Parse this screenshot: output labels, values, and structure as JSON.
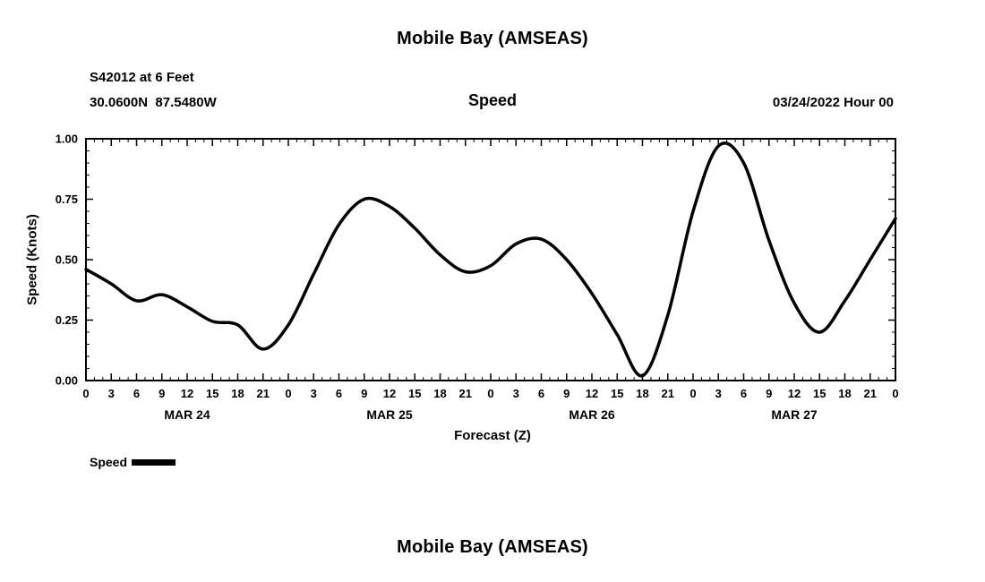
{
  "page": {
    "title_top": "Mobile Bay (AMSEAS)",
    "title_bottom": "Mobile Bay (AMSEAS)"
  },
  "header": {
    "station": "S42012 at 6 Feet",
    "coordinates": "30.0600N  87.5480W",
    "subtitle": "Speed",
    "datetime": "03/24/2022 Hour 00"
  },
  "chart_data": {
    "type": "line",
    "title": "Speed",
    "xlabel": "Forecast (Z)",
    "ylabel": "Speed (Knots)",
    "ylim": [
      0,
      1
    ],
    "xlim_hours": [
      0,
      96
    ],
    "grid": false,
    "line_color": "#000000",
    "line_width": 3.5,
    "legend": [
      {
        "name": "Speed",
        "color": "#000000"
      }
    ],
    "legend_position": "below-left",
    "ytick_values": [
      0,
      0.25,
      0.5,
      0.75,
      1
    ],
    "ytick_labels": [
      "0.00",
      "0.25",
      "0.50",
      "0.75",
      "1.00"
    ],
    "xtick_hours": [
      0,
      3,
      6,
      9,
      12,
      15,
      18,
      21,
      24,
      27,
      30,
      33,
      36,
      39,
      42,
      45,
      48,
      51,
      54,
      57,
      60,
      63,
      66,
      69,
      72,
      75,
      78,
      81,
      84,
      87,
      90,
      93,
      96
    ],
    "xtick_labels": [
      "0",
      "3",
      "6",
      "9",
      "12",
      "15",
      "18",
      "21",
      "0",
      "3",
      "6",
      "9",
      "12",
      "15",
      "18",
      "21",
      "0",
      "3",
      "6",
      "9",
      "12",
      "15",
      "18",
      "21",
      "0",
      "3",
      "6",
      "9",
      "12",
      "15",
      "18",
      "21",
      "0"
    ],
    "day_labels": [
      {
        "label": "MAR 24",
        "hour": 12
      },
      {
        "label": "MAR 25",
        "hour": 36
      },
      {
        "label": "MAR 26",
        "hour": 60
      },
      {
        "label": "MAR 27",
        "hour": 84
      }
    ],
    "series": [
      {
        "name": "Speed",
        "x_hours": [
          0,
          3,
          6,
          9,
          12,
          15,
          18,
          21,
          24,
          27,
          30,
          33,
          36,
          39,
          42,
          45,
          48,
          51,
          54,
          57,
          60,
          63,
          66,
          69,
          72,
          75,
          78,
          81,
          84,
          87,
          90,
          93,
          96
        ],
        "values": [
          0.46,
          0.4,
          0.33,
          0.355,
          0.305,
          0.245,
          0.23,
          0.13,
          0.23,
          0.44,
          0.645,
          0.75,
          0.72,
          0.63,
          0.52,
          0.45,
          0.475,
          0.565,
          0.585,
          0.5,
          0.36,
          0.19,
          0.02,
          0.27,
          0.7,
          0.97,
          0.9,
          0.58,
          0.32,
          0.2,
          0.33,
          0.5,
          0.67
        ]
      }
    ]
  }
}
